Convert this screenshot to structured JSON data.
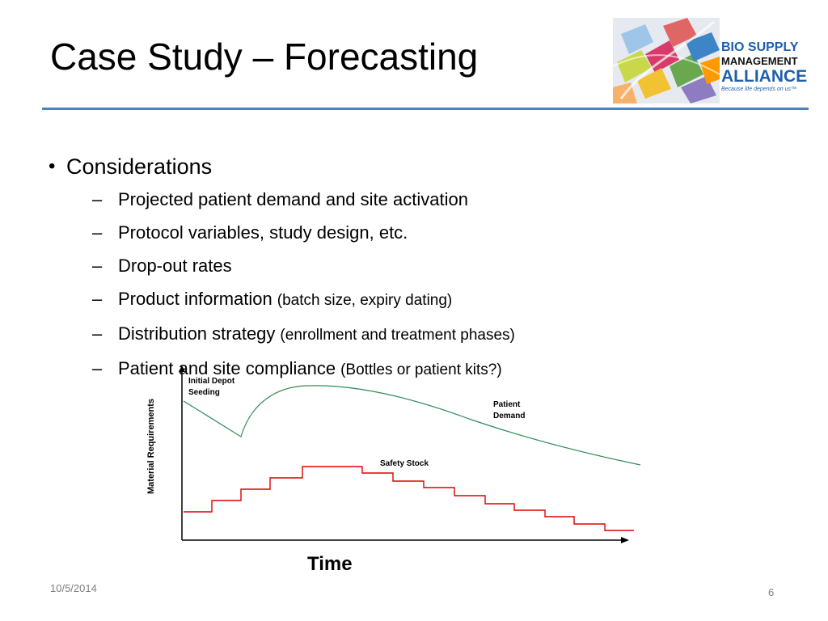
{
  "slide": {
    "title": "Case Study – Forecasting",
    "accent_color": "#4f81bd"
  },
  "logo": {
    "line1": "BIO SUPPLY",
    "line2": "MANAGEMENT",
    "line3": "ALLIANCE",
    "tagline": "Because life depends on us™"
  },
  "content": {
    "bullet": "Considerations",
    "sub_items": [
      {
        "main": "Projected patient demand and site activation",
        "detail": ""
      },
      {
        "main": "Protocol variables, study design, etc.",
        "detail": ""
      },
      {
        "main": "Drop-out rates",
        "detail": ""
      },
      {
        "main": "Product information",
        "detail": "(batch size, expiry dating)"
      },
      {
        "main": "Distribution strategy",
        "detail": "(enrollment and treatment phases)"
      },
      {
        "main": "Patient and site compliance",
        "detail": "(Bottles or patient kits?)"
      }
    ]
  },
  "chart_data": {
    "type": "line",
    "xlabel": "Time",
    "ylabel": "Material Requirements",
    "annotations": [
      "Initial Depot Seeding",
      "Patient Demand",
      "Safety  Stock"
    ],
    "series": [
      {
        "name": "Patient Demand",
        "color": "#2e8b57"
      },
      {
        "name": "Safety  Stock",
        "color": "#e00000"
      }
    ]
  },
  "footer": {
    "date": "10/5/2014",
    "page": "6"
  }
}
